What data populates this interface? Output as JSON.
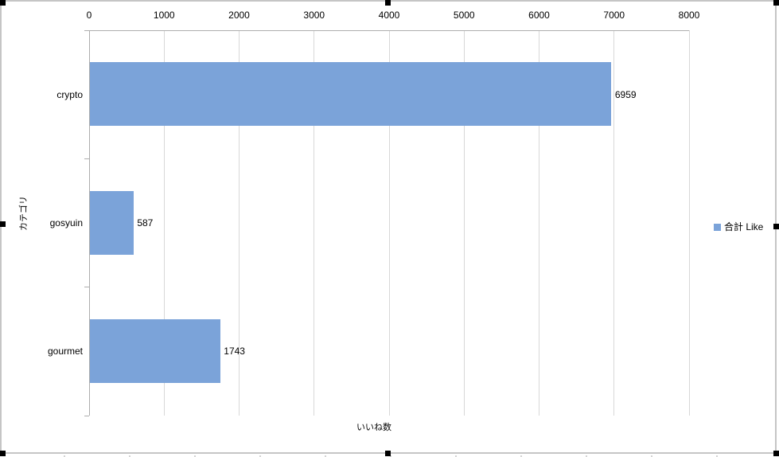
{
  "chart_data": {
    "type": "bar",
    "orientation": "horizontal",
    "title": "",
    "categories": [
      "crypto",
      "gosyuin",
      "gourmet"
    ],
    "series": [
      {
        "name": "合計 Like",
        "values": [
          6959,
          587,
          1743
        ]
      }
    ],
    "data_labels": [
      "6959",
      "587",
      "1743"
    ],
    "value_axis": {
      "position": "top",
      "min": 0,
      "max": 8000,
      "step": 1000,
      "tick_labels": [
        "0",
        "1000",
        "2000",
        "3000",
        "4000",
        "5000",
        "6000",
        "7000",
        "8000"
      ],
      "title": "いいね数"
    },
    "category_axis": {
      "position": "left",
      "title": "カテゴリ"
    },
    "legend": {
      "position": "right",
      "label": "合計 Like"
    },
    "grid": "vertical-major",
    "colors": {
      "bar": "#7ba3d9",
      "gridline": "#d8d8d8",
      "axis_line": "#adadad",
      "chart_border": "#c5c5c5",
      "selection_handle": "#000000",
      "text": "#000000"
    }
  },
  "selection": {
    "state": "chart-selected",
    "handle_count": 8
  }
}
